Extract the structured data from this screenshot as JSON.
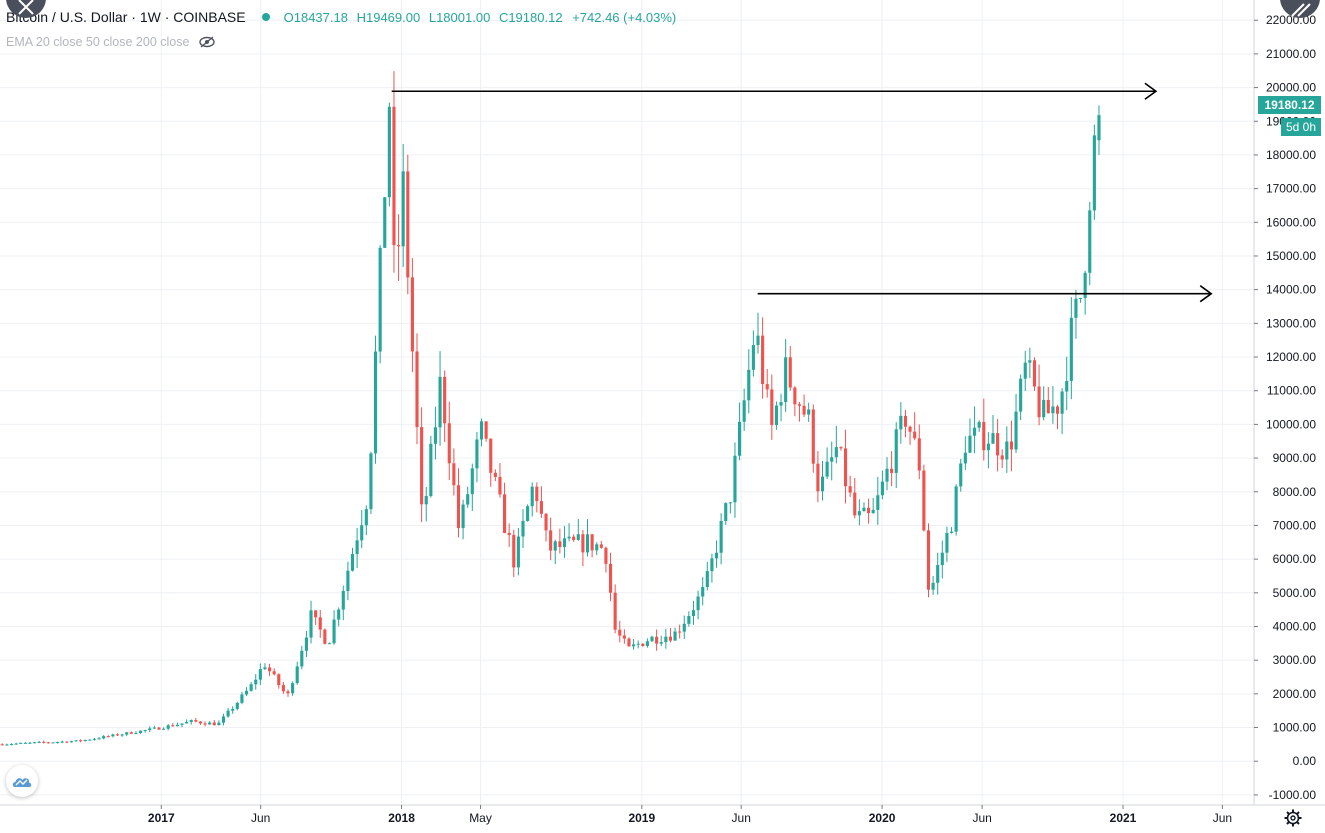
{
  "legend": {
    "title": "Bitcoin / U.S. Dollar · 1W · COINBASE",
    "open_label": "O",
    "open": "18437.18",
    "high_label": "H",
    "high": "19469.00",
    "low_label": "L",
    "low": "18001.00",
    "close_label": "C",
    "close": "19180.12",
    "change": "+742.46 (+4.03%)"
  },
  "indicator": {
    "label": "EMA 20 close 50 close 200 close"
  },
  "price_tag": {
    "value": "19180.12",
    "countdown": "5d 0h"
  },
  "colors": {
    "up": "#26a69a",
    "down": "#ef5350",
    "grid": "#eef0f4",
    "axis_text": "#131722",
    "line": "#000000"
  },
  "icons": {
    "logo": "tradingview-cloud-icon",
    "settings": "gear-icon",
    "visibility": "eye-off-icon"
  },
  "chart_data": {
    "type": "candlestick",
    "ylim": [
      -1300,
      22600
    ],
    "y_ticks": [
      -1000,
      0,
      1000,
      2000,
      3000,
      4000,
      5000,
      6000,
      7000,
      8000,
      9000,
      10000,
      11000,
      12000,
      13000,
      14000,
      15000,
      16000,
      17000,
      18000,
      19000,
      20000,
      21000,
      22000
    ],
    "y_tick_labels": [
      "-1000.00",
      "0.00",
      "1000.00",
      "2000.00",
      "3000.00",
      "4000.00",
      "5000.00",
      "6000.00",
      "7000.00",
      "8000.00",
      "9000.00",
      "10000.00",
      "11000.00",
      "12000.00",
      "13000.00",
      "14000.00",
      "15000.00",
      "16000.00",
      "17000.00",
      "18000.00",
      "19000.00",
      "20000.00",
      "21000.00",
      "22000.00"
    ],
    "x_tick_labels": [
      "2017",
      "Jun",
      "2018",
      "May",
      "2019",
      "Jun",
      "2020",
      "Jun",
      "2021",
      "Jun"
    ],
    "x_tick_dates": [
      "2017-01-01",
      "2017-06-01",
      "2018-01-01",
      "2018-05-01",
      "2019-01-01",
      "2019-06-01",
      "2020-01-01",
      "2020-06-01",
      "2021-01-01",
      "2021-06-01"
    ],
    "x_range": [
      "2016-05-01",
      "2021-07-19"
    ],
    "candle_interval": "1W",
    "anchors": [
      [
        "2016-05-01",
        500
      ],
      [
        "2016-09-01",
        600
      ],
      [
        "2016-12-25",
        960
      ],
      [
        "2017-02-20",
        1180
      ],
      [
        "2017-04-01",
        1100
      ],
      [
        "2017-05-20",
        2200
      ],
      [
        "2017-06-10",
        2900
      ],
      [
        "2017-07-15",
        1900
      ],
      [
        "2017-08-20",
        4300
      ],
      [
        "2017-09-15",
        3500
      ],
      [
        "2017-10-15",
        5700
      ],
      [
        "2017-11-15",
        8000
      ],
      [
        "2017-12-17",
        19600
      ],
      [
        "2017-12-25",
        14000
      ],
      [
        "2018-01-07",
        17000
      ],
      [
        "2018-02-05",
        7000
      ],
      [
        "2018-03-05",
        11300
      ],
      [
        "2018-04-02",
        6800
      ],
      [
        "2018-05-05",
        9800
      ],
      [
        "2018-06-25",
        5900
      ],
      [
        "2018-07-25",
        8300
      ],
      [
        "2018-08-15",
        6300
      ],
      [
        "2018-10-15",
        6500
      ],
      [
        "2018-11-10",
        6300
      ],
      [
        "2018-11-25",
        3900
      ],
      [
        "2018-12-15",
        3300
      ],
      [
        "2019-01-10",
        3600
      ],
      [
        "2019-02-25",
        3800
      ],
      [
        "2019-04-10",
        5100
      ],
      [
        "2019-05-20",
        8000
      ],
      [
        "2019-06-26",
        12900
      ],
      [
        "2019-07-20",
        9800
      ],
      [
        "2019-08-10",
        11600
      ],
      [
        "2019-09-15",
        10100
      ],
      [
        "2019-10-01",
        8000
      ],
      [
        "2019-10-28",
        9300
      ],
      [
        "2019-11-25",
        7200
      ],
      [
        "2019-12-20",
        7200
      ],
      [
        "2020-02-10",
        10300
      ],
      [
        "2020-03-01",
        8800
      ],
      [
        "2020-03-16",
        4900
      ],
      [
        "2020-04-20",
        7200
      ],
      [
        "2020-05-10",
        9500
      ],
      [
        "2020-06-10",
        9700
      ],
      [
        "2020-07-15",
        9200
      ],
      [
        "2020-08-10",
        11700
      ],
      [
        "2020-09-05",
        10200
      ],
      [
        "2020-10-01",
        10700
      ],
      [
        "2020-10-20",
        12900
      ],
      [
        "2020-11-01",
        13800
      ],
      [
        "2020-11-10",
        15500
      ],
      [
        "2020-11-17",
        17600
      ],
      [
        "2020-11-23",
        18437
      ]
    ],
    "horizontal_rays": [
      {
        "price": 19891,
        "start_date": "2017-12-17",
        "end_date": "2021-02-20",
        "arrow": true
      },
      {
        "price": 13880,
        "start_date": "2019-06-26",
        "end_date": "2021-05-15",
        "arrow": true
      }
    ],
    "last_price": 19180.12
  }
}
